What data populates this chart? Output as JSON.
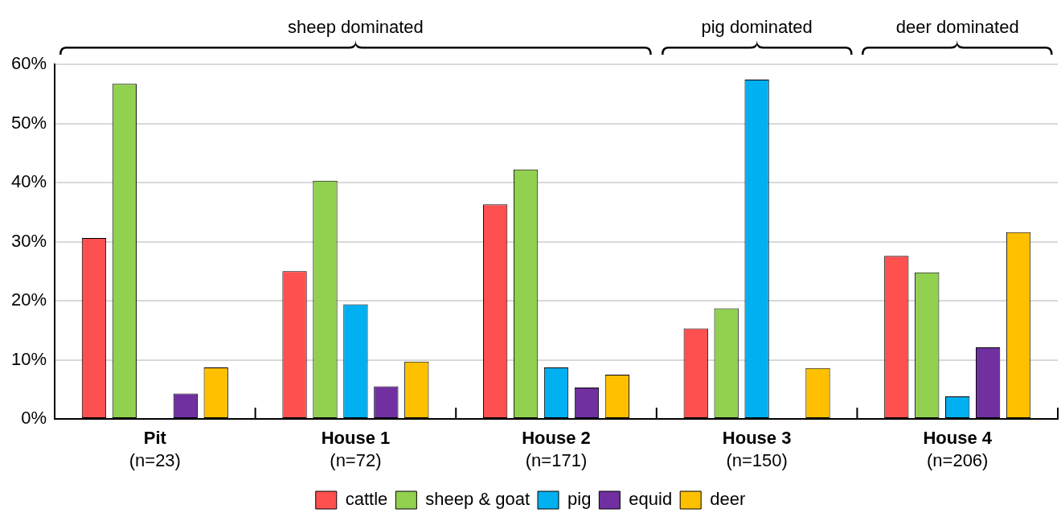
{
  "chart_data": {
    "type": "bar",
    "categories": [
      "Pit\n(n=23)",
      "House 1\n(n=72)",
      "House 2\n(n=171)",
      "House 3\n(n=150)",
      "House 4\n(n=206)"
    ],
    "series": [
      {
        "name": "cattle",
        "color": "#ff5050",
        "values": [
          30.6,
          25.0,
          36.3,
          15.3,
          27.6
        ]
      },
      {
        "name": "sheep & goat",
        "color": "#92d050",
        "values": [
          56.7,
          40.3,
          42.2,
          18.7,
          24.8
        ]
      },
      {
        "name": "pig",
        "color": "#00b0f0",
        "values": [
          0,
          19.4,
          8.7,
          57.4,
          3.8
        ]
      },
      {
        "name": "equid",
        "color": "#7030a0",
        "values": [
          4.3,
          5.5,
          5.3,
          0,
          12.1
        ]
      },
      {
        "name": "deer",
        "color": "#ffc000",
        "values": [
          8.7,
          9.7,
          7.5,
          8.6,
          31.6
        ]
      }
    ],
    "ylim": [
      0,
      60
    ],
    "yticks": [
      {
        "value": 0,
        "label": "0%"
      },
      {
        "value": 10,
        "label": "10%"
      },
      {
        "value": 20,
        "label": "20%"
      },
      {
        "value": 30,
        "label": "30%"
      },
      {
        "value": 40,
        "label": "40%"
      },
      {
        "value": 50,
        "label": "50%"
      },
      {
        "value": 60,
        "label": "60%"
      }
    ],
    "grid": "y",
    "legend": "bottom",
    "annotations": [
      "sheep dominated",
      "pig dominated",
      "deer dominated"
    ]
  }
}
